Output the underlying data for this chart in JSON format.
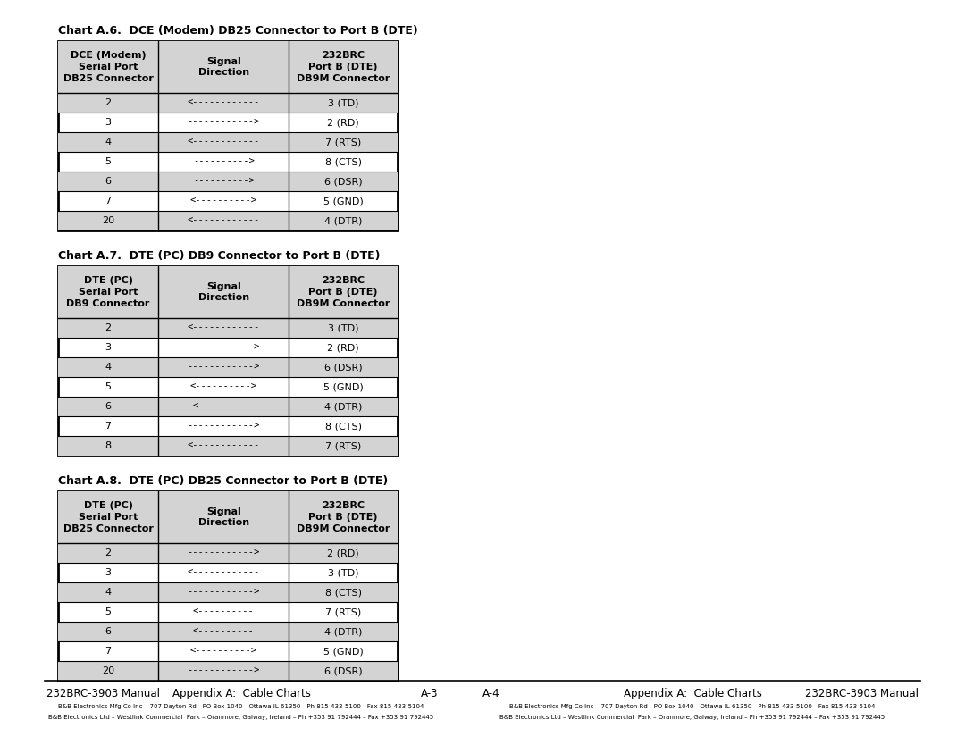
{
  "chart_a6": {
    "title": "Chart A.6.  DCE (Modem) DB25 Connector to Port B (DTE)",
    "col1_header": [
      "DCE (Modem)",
      "Serial Port",
      "DB25 Connector"
    ],
    "col2_header": [
      "Signal",
      "Direction"
    ],
    "col3_header": [
      "232BRC",
      "Port B (DTE)",
      "DB9M Connector"
    ],
    "rows": [
      [
        "2",
        "<------------",
        "3 (TD)"
      ],
      [
        "3",
        "------------>",
        "2 (RD)"
      ],
      [
        "4",
        "<------------",
        "7 (RTS)"
      ],
      [
        "5",
        "---------->",
        "8 (CTS)"
      ],
      [
        "6",
        "---------->",
        "6 (DSR)"
      ],
      [
        "7",
        "<---------->",
        "5 (GND)"
      ],
      [
        "20",
        "<------------",
        "4 (DTR)"
      ]
    ],
    "shaded_rows": [
      0,
      2,
      4,
      6
    ]
  },
  "chart_a7": {
    "title": "Chart A.7.  DTE (PC) DB9 Connector to Port B (DTE)",
    "col1_header": [
      "DTE (PC)",
      "Serial Port",
      "DB9 Connector"
    ],
    "col2_header": [
      "Signal",
      "Direction"
    ],
    "col3_header": [
      "232BRC",
      "Port B (DTE)",
      "DB9M Connector"
    ],
    "rows": [
      [
        "2",
        "<------------",
        "3 (TD)"
      ],
      [
        "3",
        "------------>",
        "2 (RD)"
      ],
      [
        "4",
        "------------>",
        "6 (DSR)"
      ],
      [
        "5",
        "<---------->",
        "5 (GND)"
      ],
      [
        "6",
        "<----------",
        "4 (DTR)"
      ],
      [
        "7",
        "------------>",
        "8 (CTS)"
      ],
      [
        "8",
        "<------------",
        "7 (RTS)"
      ]
    ],
    "shaded_rows": [
      0,
      2,
      4,
      6
    ]
  },
  "chart_a8": {
    "title": "Chart A.8.  DTE (PC) DB25 Connector to Port B (DTE)",
    "col1_header": [
      "DTE (PC)",
      "Serial Port",
      "DB25 Connector"
    ],
    "col2_header": [
      "Signal",
      "Direction"
    ],
    "col3_header": [
      "232BRC",
      "Port B (DTE)",
      "DB9M Connector"
    ],
    "rows": [
      [
        "2",
        "------------>",
        "2 (RD)"
      ],
      [
        "3",
        "<------------",
        "3 (TD)"
      ],
      [
        "4",
        "------------>",
        "8 (CTS)"
      ],
      [
        "5",
        "<----------",
        "7 (RTS)"
      ],
      [
        "6",
        "<----------",
        "4 (DTR)"
      ],
      [
        "7",
        "<---------->",
        "5 (GND)"
      ],
      [
        "20",
        "------------>",
        "6 (DSR)"
      ]
    ],
    "shaded_rows": [
      0,
      2,
      4,
      6
    ]
  },
  "footer_left": "232BRC-3903 Manual",
  "footer_center_left": "Appendix A:  Cable Charts",
  "footer_page_left": "A-3",
  "footer_page_right": "A-4",
  "footer_center_right": "Appendix A:  Cable Charts",
  "footer_right": "232BRC-3903 Manual",
  "footer_sub1": "B&B Electronics Mfg Co Inc – 707 Dayton Rd - PO Box 1040 - Ottawa IL 61350 - Ph 815-433-5100 - Fax 815-433-5104",
  "footer_sub2": "B&B Electronics Ltd – Westlink Commercial  Park – Oranmore, Galway, Ireland – Ph +353 91 792444 – Fax +353 91 792445",
  "bg_color": "#ffffff",
  "shade_color": "#d3d3d3",
  "border_color": "#000000",
  "text_color": "#000000"
}
